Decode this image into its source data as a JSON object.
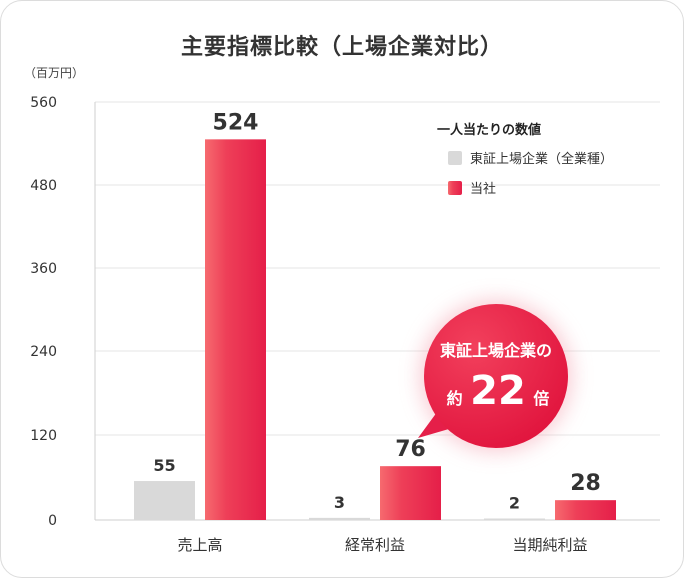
{
  "title": "主要指標比較（上場企業対比）",
  "unit_label": "（百万円）",
  "colors": {
    "gray": "#d9d9d9",
    "red_top": "#e8254a",
    "red_light": "#f2596a",
    "bubble": "#e8254a",
    "grid": "#e6e6e6"
  },
  "chart_data": {
    "type": "bar",
    "categories": [
      "売上高",
      "経常利益",
      "当期純利益"
    ],
    "series": [
      {
        "name": "東証上場企業（全業種）",
        "values": [
          55,
          3,
          2
        ]
      },
      {
        "name": "当社",
        "values": [
          524,
          76,
          28
        ]
      }
    ],
    "y_ticks": [
      "0",
      "120",
      "240",
      "360",
      "480",
      "560"
    ],
    "y_tick_values": [
      0,
      120,
      240,
      360,
      480,
      560
    ],
    "ylim": [
      0,
      560
    ],
    "grid": true,
    "legend_title": "一人当たりの数値",
    "legend_position": "top-right",
    "annotation": {
      "line1": "東証上場企業の",
      "prefix": "約",
      "number": "22",
      "suffix": "倍"
    }
  }
}
